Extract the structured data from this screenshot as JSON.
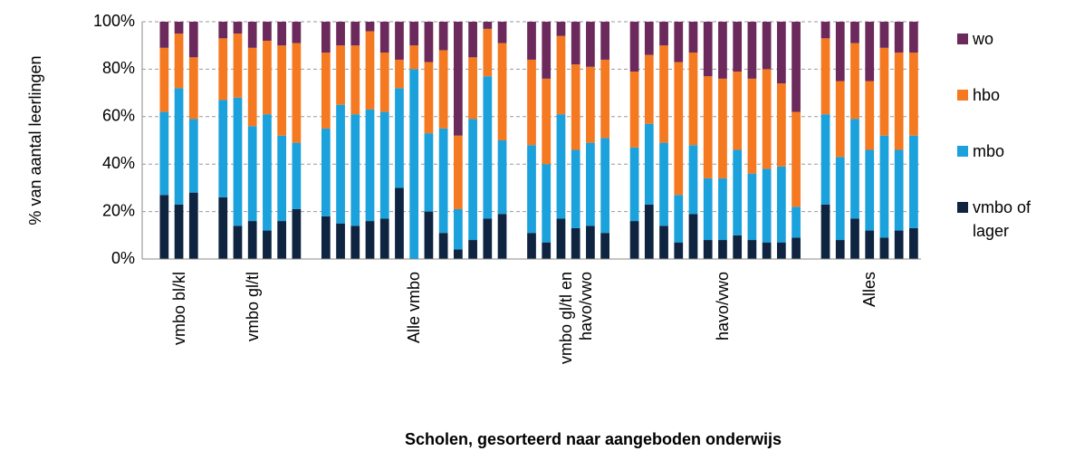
{
  "chart_data": {
    "type": "stacked_bar",
    "ylabel": "% van aantal leerlingen",
    "xlabel": "Scholen, gesorteerd naar aangeboden onderwijs",
    "categories": [
      null,
      null,
      "vmbo bl/kl",
      null,
      null,
      null,
      null,
      "vmbo gl/tl",
      null,
      null,
      null,
      null,
      null,
      null,
      null,
      null,
      null,
      null,
      "Alle vmbo",
      null,
      null,
      null,
      null,
      null,
      null,
      null,
      null,
      null,
      null,
      "vmbo gl/tl en havo/vwo",
      null,
      null,
      null,
      null,
      null,
      null,
      null,
      null,
      null,
      "havo/vwo",
      null,
      null,
      null,
      null,
      null,
      null,
      null,
      null,
      null,
      "Alles",
      null,
      null,
      null
    ],
    "series": [
      {
        "name": "vmbo of lager",
        "color": "#0e2440",
        "values": [
          null,
          27,
          23,
          28,
          null,
          26,
          14,
          16,
          12,
          16,
          21,
          null,
          18,
          15,
          14,
          16,
          17,
          30,
          0,
          20,
          11,
          4,
          8,
          17,
          19,
          null,
          11,
          7,
          17,
          13,
          14,
          11,
          null,
          16,
          23,
          14,
          7,
          19,
          8,
          8,
          10,
          8,
          7,
          7,
          9,
          null,
          23,
          8,
          17,
          12,
          9,
          12,
          13
        ]
      },
      {
        "name": "mbo",
        "color": "#1ba1dc",
        "values": [
          null,
          35,
          49,
          31,
          null,
          41,
          54,
          40,
          49,
          36,
          28,
          null,
          37,
          50,
          47,
          47,
          45,
          42,
          80,
          33,
          44,
          17,
          51,
          60,
          31,
          null,
          37,
          33,
          44,
          33,
          35,
          40,
          null,
          31,
          34,
          35,
          20,
          29,
          26,
          26,
          36,
          28,
          31,
          32,
          13,
          null,
          38,
          35,
          42,
          34,
          43,
          34,
          39
        ]
      },
      {
        "name": "hbo",
        "color": "#f47920",
        "values": [
          null,
          27,
          23,
          26,
          null,
          26,
          27,
          33,
          31,
          38,
          42,
          null,
          32,
          25,
          29,
          33,
          25,
          12,
          10,
          30,
          33,
          31,
          26,
          20,
          41,
          null,
          36,
          36,
          33,
          36,
          32,
          33,
          null,
          32,
          29,
          41,
          56,
          39,
          43,
          42,
          33,
          40,
          42,
          35,
          40,
          null,
          32,
          32,
          32,
          29,
          37,
          41,
          35
        ]
      },
      {
        "name": "wo",
        "color": "#6b2a5b",
        "values": [
          null,
          11,
          5,
          15,
          null,
          7,
          5,
          11,
          8,
          10,
          9,
          null,
          13,
          10,
          10,
          4,
          13,
          16,
          10,
          17,
          12,
          48,
          15,
          3,
          9,
          null,
          16,
          24,
          6,
          18,
          19,
          16,
          null,
          21,
          14,
          10,
          17,
          13,
          23,
          24,
          21,
          24,
          20,
          26,
          38,
          null,
          7,
          25,
          9,
          25,
          11,
          13,
          13
        ]
      }
    ],
    "ylim": [
      0,
      100
    ],
    "yticks": [
      {
        "value": 0,
        "label": "0%"
      },
      {
        "value": 20,
        "label": "20%"
      },
      {
        "value": 40,
        "label": "40%"
      },
      {
        "value": 60,
        "label": "60%"
      },
      {
        "value": 80,
        "label": "80%"
      },
      {
        "value": 100,
        "label": "100%"
      }
    ],
    "grid": true,
    "legend": "right"
  }
}
